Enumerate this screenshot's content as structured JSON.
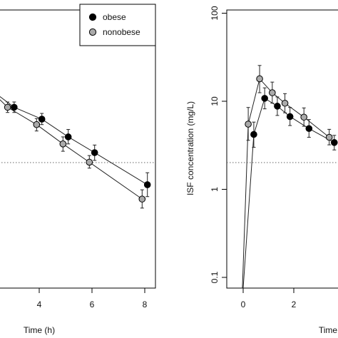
{
  "chart_data": [
    {
      "type": "line",
      "panel": "left",
      "xlabel": "Time (h)",
      "ylabel": "",
      "x_ticks": [
        "4",
        "6",
        "8"
      ],
      "log_y": true,
      "threshold_line": "dotted horizontal",
      "legend": {
        "placement": "top-right",
        "entries": [
          {
            "name": "obese",
            "color": "#000000"
          },
          {
            "name": "nonobese",
            "color": "#aaaaaa"
          }
        ]
      },
      "series": [
        {
          "name": "obese",
          "color": "#000000",
          "points": [
            {
              "x": 3.05,
              "y": 9.0,
              "lo": 7.8,
              "hi": 10.4
            },
            {
              "x": 4.1,
              "y": 6.5,
              "lo": 5.6,
              "hi": 7.6
            },
            {
              "x": 5.1,
              "y": 4.0,
              "lo": 3.3,
              "hi": 4.9
            },
            {
              "x": 6.1,
              "y": 2.6,
              "lo": 2.1,
              "hi": 3.2
            },
            {
              "x": 8.1,
              "y": 1.08,
              "lo": 0.78,
              "hi": 1.5
            }
          ]
        },
        {
          "name": "nonobese",
          "color": "#aaaaaa",
          "points": [
            {
              "x": 2.8,
              "y": 9.0,
              "lo": 7.8,
              "hi": 10.4
            },
            {
              "x": 3.9,
              "y": 5.6,
              "lo": 4.7,
              "hi": 6.6
            },
            {
              "x": 4.9,
              "y": 3.3,
              "lo": 2.7,
              "hi": 4.0
            },
            {
              "x": 5.9,
              "y": 2.0,
              "lo": 1.7,
              "hi": 2.4
            },
            {
              "x": 7.9,
              "y": 0.73,
              "lo": 0.57,
              "hi": 0.94
            }
          ]
        }
      ]
    },
    {
      "type": "line",
      "panel": "right",
      "xlabel": "Time",
      "ylabel": "ISF concentration (mg/L)",
      "x_ticks": [
        "0",
        "2"
      ],
      "y_ticks": [
        "0.1",
        "1",
        "10",
        "100"
      ],
      "log_y": true,
      "threshold_line": "dotted horizontal",
      "series": [
        {
          "name": "obese",
          "color": "#000000",
          "points": [
            {
              "x": 0.42,
              "y": 4.2,
              "lo": 3.0,
              "hi": 5.8
            },
            {
              "x": 0.85,
              "y": 10.8,
              "lo": 8.2,
              "hi": 14.2
            },
            {
              "x": 1.35,
              "y": 8.8,
              "lo": 6.9,
              "hi": 11.2
            },
            {
              "x": 1.85,
              "y": 6.7,
              "lo": 5.3,
              "hi": 8.5
            },
            {
              "x": 2.6,
              "y": 4.9,
              "lo": 3.9,
              "hi": 6.2
            },
            {
              "x": 3.6,
              "y": 3.4,
              "lo": 2.8,
              "hi": 4.1
            }
          ]
        },
        {
          "name": "nonobese",
          "color": "#aaaaaa",
          "points": [
            {
              "x": 0.2,
              "y": 5.5,
              "lo": 3.6,
              "hi": 8.5
            },
            {
              "x": 0.65,
              "y": 18.0,
              "lo": 12.5,
              "hi": 25.5
            },
            {
              "x": 1.15,
              "y": 12.5,
              "lo": 9.5,
              "hi": 16.5
            },
            {
              "x": 1.65,
              "y": 9.5,
              "lo": 7.4,
              "hi": 12.2
            },
            {
              "x": 2.4,
              "y": 6.6,
              "lo": 5.2,
              "hi": 8.4
            },
            {
              "x": 3.4,
              "y": 3.9,
              "lo": 3.2,
              "hi": 4.8
            }
          ]
        }
      ]
    }
  ]
}
